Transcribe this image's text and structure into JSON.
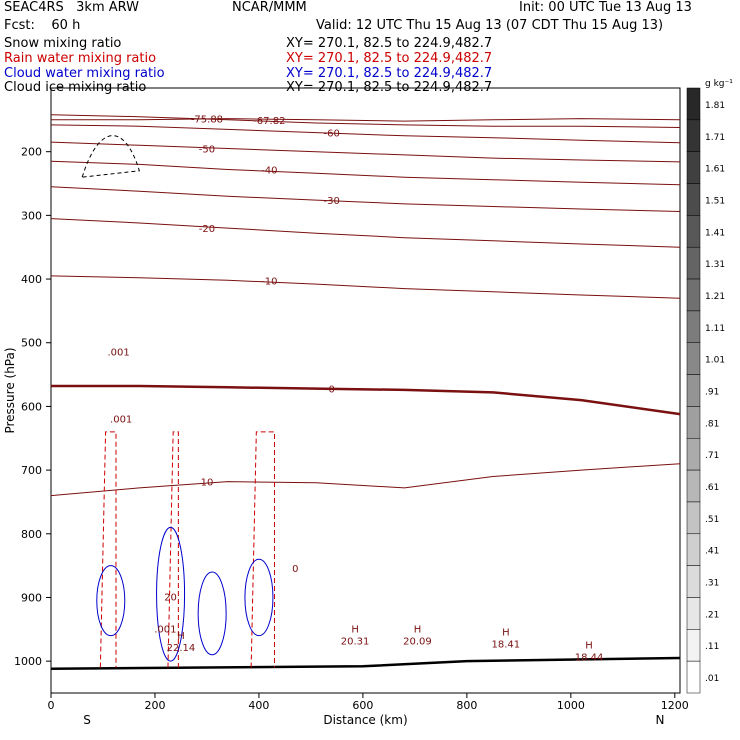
{
  "header": {
    "model": "SEAC4RS   3km ARW",
    "center": "NCAR/MMM",
    "init": "Init: 00 UTC Tue 13 Aug 13",
    "fcst": "Fcst:    60 h",
    "valid": "Valid: 12 UTC Thu 15 Aug 13 (07 CDT Thu 15 Aug 13)"
  },
  "fields": [
    {
      "label": "Snow mixing ratio",
      "xy": "XY= 270.1, 82.5 to 224.9,482.7",
      "color": "#000000"
    },
    {
      "label": "Rain water mixing ratio",
      "xy": "XY= 270.1, 82.5 to 224.9,482.7",
      "color": "#cc0000"
    },
    {
      "label": "Cloud water mixing ratio",
      "xy": "XY= 270.1, 82.5 to 224.9,482.7",
      "color": "#0000cc"
    },
    {
      "label": "Cloud ice mixing ratio",
      "xy": "XY= 270.1, 82.5 to 224.9,482.7",
      "color": "#000000"
    }
  ],
  "chart_data": {
    "type": "contour-cross-section",
    "xlabel": "Distance (km)",
    "ylabel": "Pressure (hPa)",
    "xlim": [
      0,
      1210
    ],
    "ylim": [
      1050,
      100
    ],
    "x_ticks": [
      0,
      200,
      400,
      600,
      800,
      1000,
      1200
    ],
    "y_ticks": [
      200,
      300,
      400,
      500,
      600,
      700,
      800,
      900,
      1000
    ],
    "endpoints": {
      "left": "S",
      "right": "N"
    },
    "colorbar": {
      "unit": "g kg⁻¹",
      "levels": [
        "1.81",
        "1.71",
        "1.61",
        "1.51",
        "1.41",
        "1.31",
        "1.21",
        "1.11",
        "1.01",
        ".91",
        ".81",
        ".71",
        ".61",
        ".51",
        ".41",
        ".31",
        ".21",
        ".11",
        ".01"
      ]
    },
    "temperature_contours": [
      {
        "label": "-75.88",
        "y": [
          150,
          150,
          148,
          150,
          152,
          150,
          148,
          150
        ]
      },
      {
        "label": "-67.82",
        "y": [
          142,
          145,
          150,
          155,
          158,
          160,
          160,
          162
        ]
      },
      {
        "label": "-60",
        "y": [
          158,
          160,
          165,
          170,
          175,
          178,
          182,
          186
        ]
      },
      {
        "label": "-50",
        "y": [
          185,
          190,
          195,
          200,
          205,
          210,
          213,
          216
        ]
      },
      {
        "label": "-40",
        "y": [
          215,
          220,
          228,
          234,
          240,
          244,
          248,
          252
        ]
      },
      {
        "label": "-30",
        "y": [
          255,
          262,
          270,
          276,
          282,
          286,
          290,
          294
        ]
      },
      {
        "label": "-20",
        "y": [
          305,
          312,
          320,
          328,
          335,
          340,
          345,
          350
        ]
      },
      {
        "label": "-10",
        "y": [
          395,
          398,
          402,
          408,
          415,
          420,
          425,
          430
        ]
      },
      {
        "label": "0",
        "y": [
          568,
          568,
          570,
          572,
          574,
          578,
          590,
          612
        ]
      },
      {
        "label": "10",
        "y": [
          740,
          728,
          718,
          720,
          728,
          710,
          700,
          690
        ]
      }
    ],
    "extrema": [
      {
        "x": 250,
        "p": 965,
        "label": "H",
        "value": "22.14"
      },
      {
        "x": 585,
        "p": 955,
        "label": "H",
        "value": "20.31"
      },
      {
        "x": 705,
        "p": 955,
        "label": "H",
        "value": "20.09"
      },
      {
        "x": 875,
        "p": 960,
        "label": "H",
        "value": "18.41"
      },
      {
        "x": 1035,
        "p": 980,
        "label": "H",
        "value": "18.44"
      }
    ],
    "contour_labels": [
      {
        "x": 230,
        "p": 905,
        "value": "20"
      },
      {
        "x": 470,
        "p": 860,
        "value": "0"
      },
      {
        "x": 220,
        "p": 955,
        "value": ".001"
      },
      {
        "x": 130,
        "p": 520,
        "value": ".001"
      },
      {
        "x": 135,
        "p": 625,
        "value": ".001"
      }
    ]
  }
}
